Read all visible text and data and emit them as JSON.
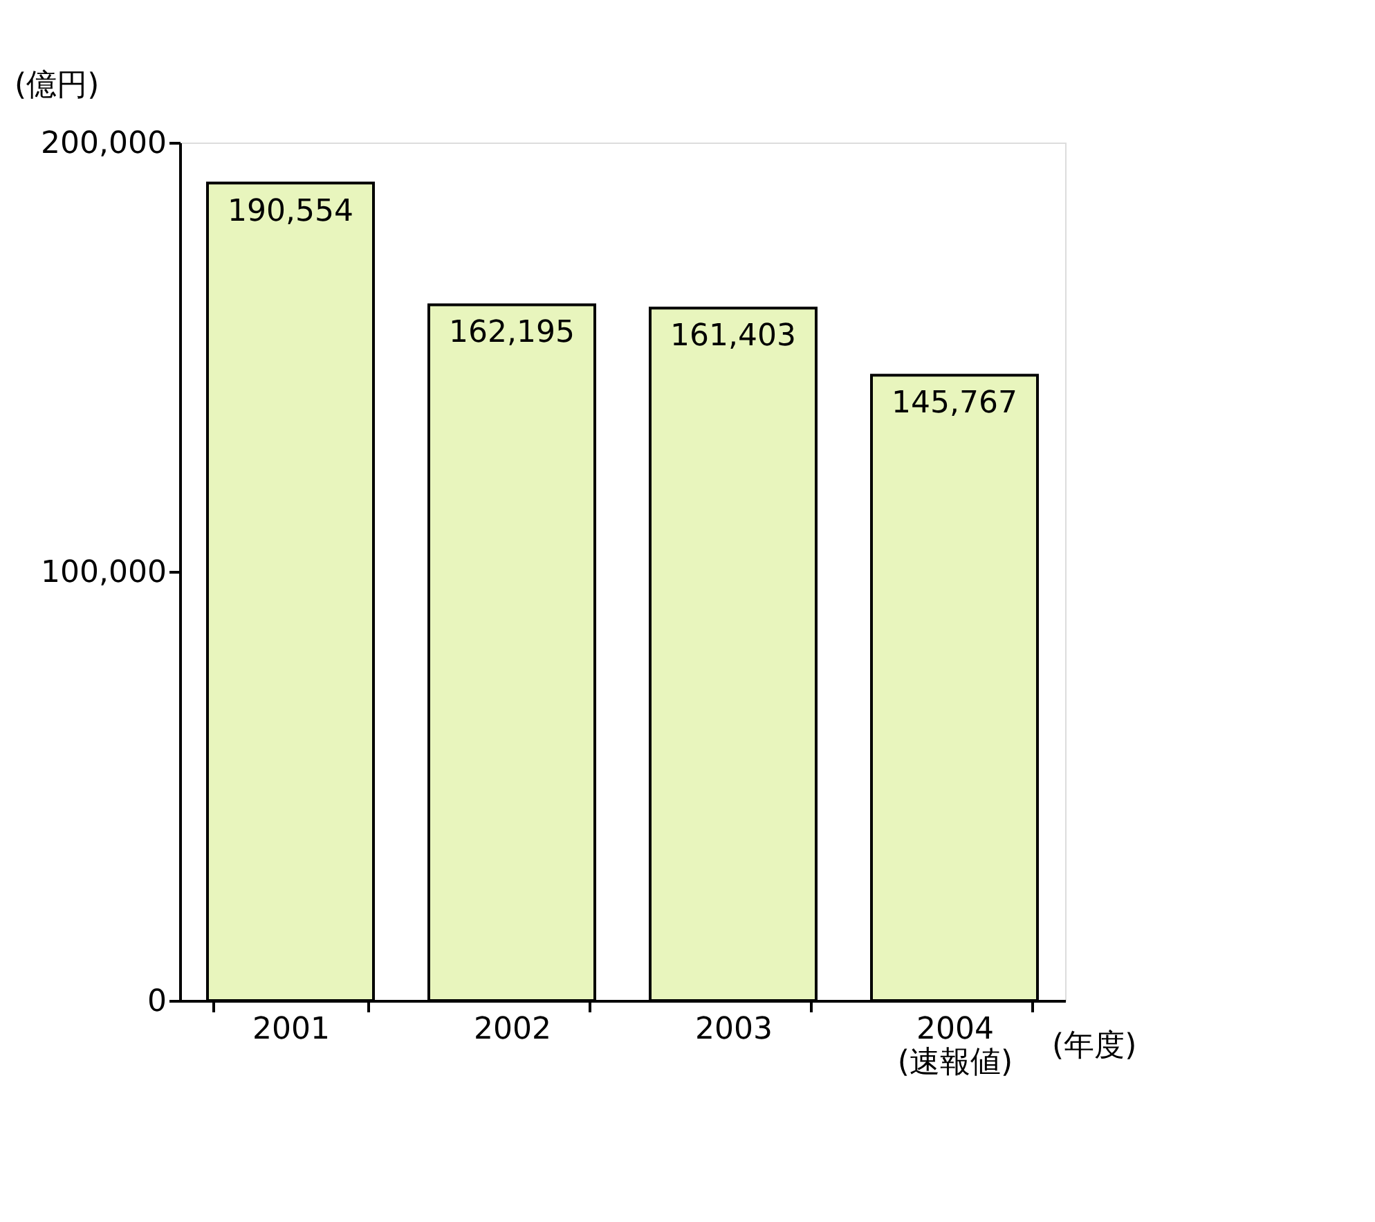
{
  "chart_data": {
    "type": "bar",
    "xlabel": "(年度)",
    "ylabel": "(億円)",
    "categories": [
      "2001",
      "2002",
      "2003",
      "2004\n(速報値)"
    ],
    "values": [
      190554,
      162195,
      161403,
      145767
    ],
    "color": "#e8f5bd",
    "value_labels": [
      "190,554",
      "162,195",
      "161,403",
      "145,767"
    ],
    "ylim": [
      0,
      200000
    ],
    "yticks": [
      0,
      {
        "value": 100000,
        "label": "100,000"
      },
      {
        "value": 200000,
        "label": "200,000"
      }
    ],
    "grid": false
  }
}
